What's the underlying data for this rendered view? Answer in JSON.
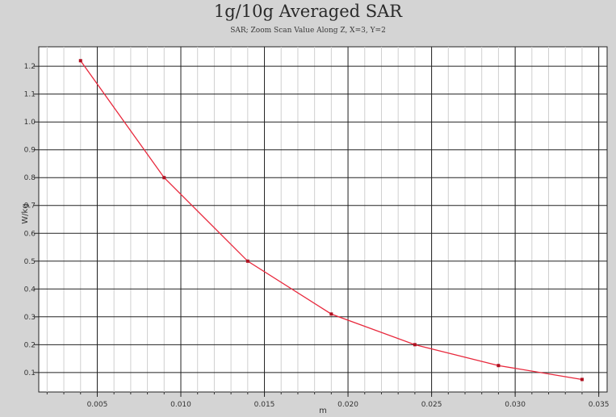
{
  "chart_data": {
    "type": "line",
    "title": "1g/10g Averaged SAR",
    "subtitle": "SAR; Zoom Scan Value Along Z, X=3, Y=2",
    "xlabel": "m",
    "ylabel": "W/kg",
    "x": [
      0.004,
      0.009,
      0.014,
      0.019,
      0.024,
      0.029,
      0.034
    ],
    "series": [
      {
        "values": [
          1.22,
          0.8,
          0.5,
          0.31,
          0.2,
          0.125,
          0.075
        ]
      }
    ],
    "xlim": [
      0.0015,
      0.0355
    ],
    "ylim": [
      0.03,
      1.27
    ],
    "x_ticks": [
      "0.005",
      "0.010",
      "0.015",
      "0.020",
      "0.025",
      "0.030",
      "0.035"
    ],
    "y_ticks": [
      "0.1",
      "0.2",
      "0.3",
      "0.4",
      "0.5",
      "0.6",
      "0.7",
      "0.8",
      "0.9",
      "1.0",
      "1.1",
      "1.2"
    ],
    "grid": true,
    "line_color": "#e8283c",
    "marker_color": "#b01020"
  }
}
